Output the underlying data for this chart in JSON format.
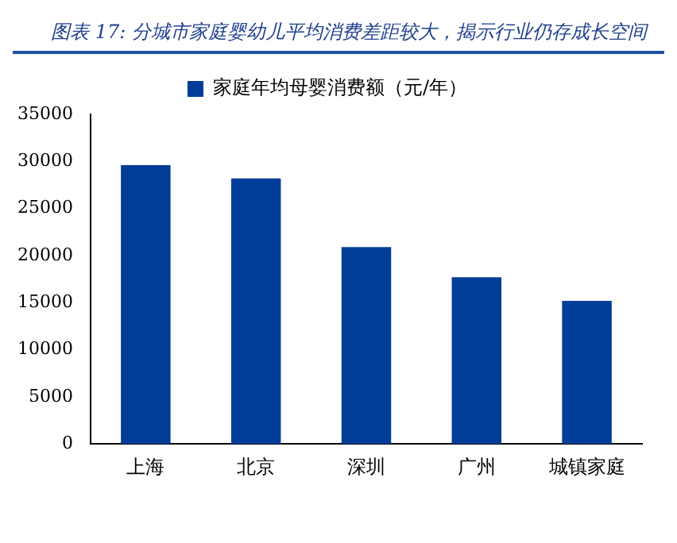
{
  "chart_data": {
    "type": "bar",
    "title": "图表 17:  分城市家庭婴幼儿平均消费差距较大，揭示行业仍存成长空间",
    "categories": [
      "上海",
      "北京",
      "深圳",
      "广州",
      "城镇家庭"
    ],
    "series": [
      {
        "name": "家庭年均母婴消费额（元/年）",
        "color": "#003d99",
        "values": [
          29600,
          28200,
          20900,
          17700,
          15200
        ]
      }
    ],
    "ylim": [
      0,
      35000
    ],
    "yticks": [
      0,
      5000,
      10000,
      15000,
      20000,
      25000,
      30000,
      35000
    ],
    "grid": false,
    "legend": "top"
  }
}
